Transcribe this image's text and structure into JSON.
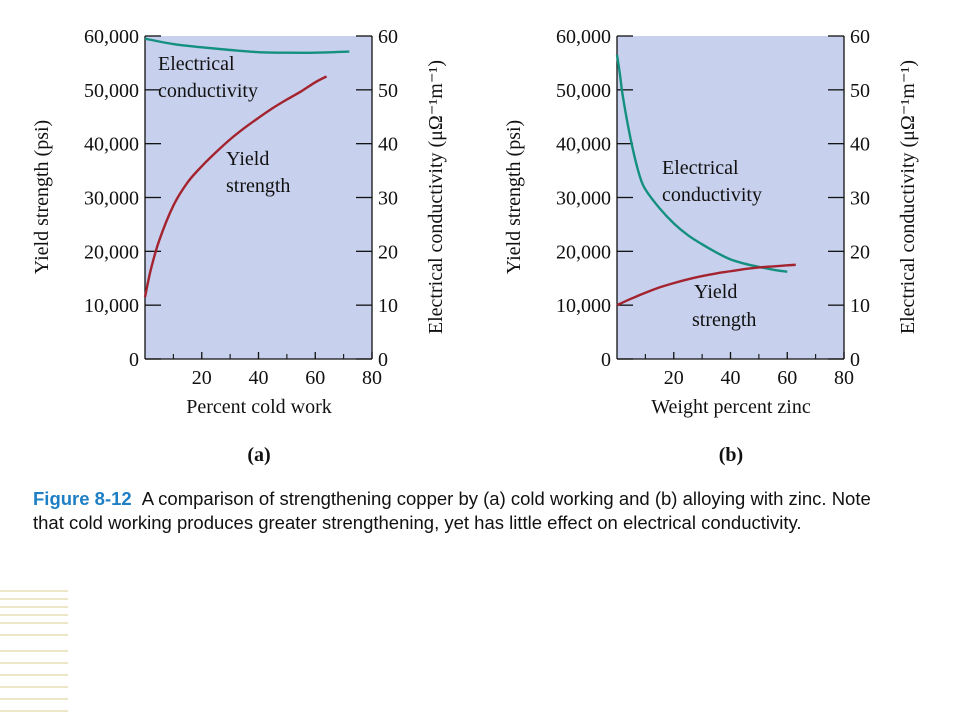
{
  "caption": {
    "figure_number": "Figure 8-12",
    "text": "A comparison of strengthening copper by (a) cold working and (b) alloying with zinc.  Note that cold working produces greater strengthening, yet has little effect on electrical conductivity."
  },
  "colors": {
    "plot_background": "#c7d0ec",
    "yield_strength": "#a3232f",
    "electrical_conductivity": "#13907f",
    "caption_label": "#1f7fc4",
    "decoration": "#ece7c6"
  },
  "chart_data": [
    {
      "type": "line",
      "panel_label": "(a)",
      "xlabel": "Percent cold work",
      "ylabel": "Yield strength (psi)",
      "y2label": "Electrical conductivity (μΩ⁻¹m⁻¹)",
      "xlim": [
        0,
        80
      ],
      "ylim": [
        0,
        60000
      ],
      "y2lim": [
        0,
        60
      ],
      "x_ticks": [
        "20",
        "40",
        "60",
        "80"
      ],
      "y_ticks": [
        "0",
        "10,000",
        "20,000",
        "30,000",
        "40,000",
        "50,000",
        "60,000"
      ],
      "y2_ticks": [
        "0",
        "10",
        "20",
        "30",
        "40",
        "50",
        "60"
      ],
      "grid": false,
      "series": [
        {
          "name": "Yield strength",
          "axis": "left",
          "label_lines": [
            "Yield",
            "strength"
          ],
          "x": [
            0,
            2,
            5,
            10,
            15,
            20,
            25,
            30,
            35,
            40,
            45,
            50,
            55,
            60,
            64
          ],
          "y": [
            11500,
            16500,
            22000,
            28500,
            32800,
            35800,
            38400,
            40800,
            42900,
            44800,
            46600,
            48200,
            49700,
            51400,
            52500
          ]
        },
        {
          "name": "Electrical conductivity",
          "axis": "right",
          "label_lines": [
            "Electrical",
            "conductivity"
          ],
          "x": [
            0,
            10,
            20,
            30,
            40,
            50,
            60,
            72
          ],
          "y": [
            59.5,
            58.5,
            57.9,
            57.4,
            57.0,
            56.9,
            56.9,
            57.1
          ]
        }
      ]
    },
    {
      "type": "line",
      "panel_label": "(b)",
      "xlabel": "Weight percent zinc",
      "ylabel": "Yield strength (psi)",
      "y2label": "Electrical conductivity (μΩ⁻¹m⁻¹)",
      "xlim": [
        0,
        80
      ],
      "ylim": [
        0,
        60000
      ],
      "y2lim": [
        0,
        60
      ],
      "x_ticks": [
        "20",
        "40",
        "60",
        "80"
      ],
      "y_ticks": [
        "0",
        "10,000",
        "20,000",
        "30,000",
        "40,000",
        "50,000",
        "60,000"
      ],
      "y2_ticks": [
        "0",
        "10",
        "20",
        "30",
        "40",
        "50",
        "60"
      ],
      "grid": false,
      "series": [
        {
          "name": "Electrical conductivity",
          "axis": "right",
          "label_lines": [
            "Electrical",
            "conductivity"
          ],
          "x": [
            0,
            1,
            2,
            4,
            6,
            8,
            10,
            15,
            20,
            25,
            30,
            35,
            40,
            45,
            50,
            55,
            60
          ],
          "y": [
            56.5,
            53,
            49,
            43,
            38,
            34,
            31.5,
            28,
            25.2,
            23,
            21.3,
            19.8,
            18.5,
            17.7,
            17.1,
            16.6,
            16.2
          ]
        },
        {
          "name": "Yield strength",
          "axis": "left",
          "label_lines": [
            "Yield",
            "strength"
          ],
          "x": [
            0,
            5,
            10,
            15,
            20,
            25,
            30,
            35,
            40,
            45,
            50,
            55,
            60,
            63
          ],
          "y": [
            10000,
            11200,
            12300,
            13300,
            14100,
            14800,
            15400,
            15900,
            16300,
            16700,
            17000,
            17200,
            17400,
            17500
          ]
        }
      ]
    }
  ]
}
